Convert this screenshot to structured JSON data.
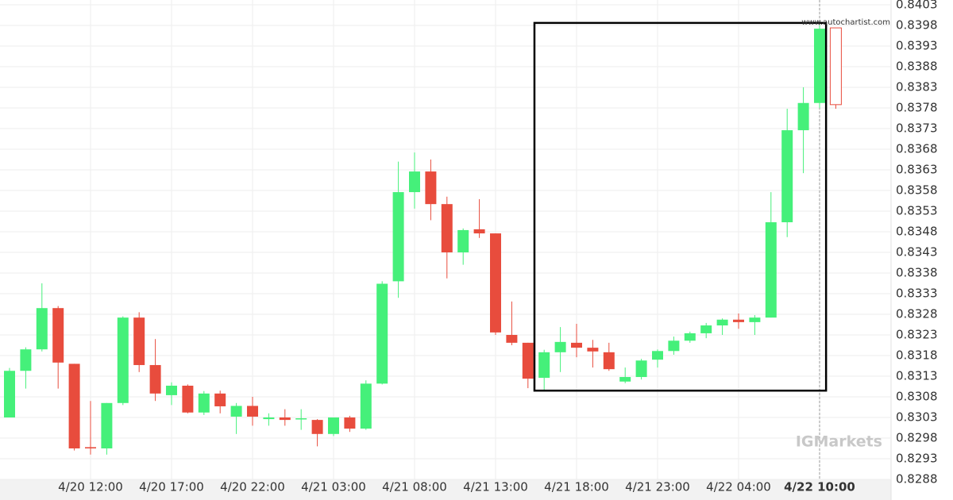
{
  "chart_data": {
    "type": "candlestick",
    "watermark": "www.autochartist.com",
    "logo": "IGMarkets",
    "categories": [
      null,
      null,
      null,
      null,
      null,
      "4/20 12:00",
      null,
      null,
      null,
      null,
      "4/20 17:00",
      null,
      null,
      null,
      null,
      "4/20 22:00",
      null,
      null,
      null,
      null,
      "4/21 03:00",
      null,
      null,
      null,
      null,
      "4/21 08:00",
      null,
      null,
      null,
      null,
      "4/21 13:00",
      null,
      null,
      null,
      null,
      "4/21 18:00",
      null,
      null,
      null,
      null,
      "4/21 23:00",
      null,
      null,
      null,
      null,
      "4/22 04:00",
      null,
      null,
      null,
      null,
      "4/22 10:00",
      null
    ],
    "open": [
      0.8303,
      0.83143,
      0.83195,
      0.83295,
      0.8316,
      0.82958,
      0.82955,
      0.83065,
      0.83272,
      0.83157,
      0.83084,
      0.83107,
      0.83042,
      0.83088,
      0.83032,
      0.83058,
      0.83026,
      0.8303,
      0.83026,
      0.83024,
      0.8299,
      0.8303,
      0.83003,
      0.83112,
      0.8336,
      0.83576,
      0.83626,
      0.83547,
      0.8343,
      0.83486,
      0.83476,
      0.8323,
      0.83211,
      0.83126,
      0.83188,
      0.83211,
      0.83199,
      0.83188,
      0.83117,
      0.83128,
      0.8317,
      0.83191,
      0.83216,
      0.83234,
      0.83253,
      0.83267,
      0.83261,
      0.83272,
      0.83503,
      0.83726,
      0.83792,
      0.83974
    ],
    "high": [
      0.8315,
      0.832,
      0.83355,
      0.833,
      0.8316,
      0.8307,
      0.83065,
      0.83275,
      0.83285,
      0.8322,
      0.83115,
      0.8311,
      0.83094,
      0.83095,
      0.83065,
      0.8308,
      0.8304,
      0.8305,
      0.8305,
      0.83026,
      0.8303,
      0.83034,
      0.8312,
      0.8336,
      0.8365,
      0.83672,
      0.83655,
      0.83565,
      0.83488,
      0.83559,
      0.83476,
      0.83311,
      0.83211,
      0.83194,
      0.83249,
      0.83257,
      0.83218,
      0.83211,
      0.83151,
      0.83172,
      0.83195,
      0.83226,
      0.83238,
      0.83259,
      0.8327,
      0.83282,
      0.83278,
      0.83576,
      0.83778,
      0.8383,
      0.8398,
      0.83974
    ],
    "low": [
      0.8303,
      0.831,
      0.8319,
      0.831,
      0.8295,
      0.8294,
      0.8294,
      0.8306,
      0.8314,
      0.8307,
      0.8306,
      0.8304,
      0.83036,
      0.8304,
      0.8299,
      0.8301,
      0.8301,
      0.8301,
      0.83,
      0.8296,
      0.82985,
      0.82995,
      0.83,
      0.8311,
      0.8332,
      0.83536,
      0.83508,
      0.83367,
      0.834,
      0.83465,
      0.8323,
      0.83205,
      0.83101,
      0.83095,
      0.8314,
      0.83176,
      0.83151,
      0.83143,
      0.83113,
      0.83122,
      0.83151,
      0.83182,
      0.83211,
      0.83222,
      0.8323,
      0.83245,
      0.8323,
      0.83272,
      0.83467,
      0.83622,
      0.8378,
      0.83778
    ],
    "close": [
      0.83143,
      0.83195,
      0.83295,
      0.83163,
      0.82955,
      0.82955,
      0.83065,
      0.83272,
      0.83157,
      0.83088,
      0.83107,
      0.83042,
      0.83088,
      0.83057,
      0.83058,
      0.83032,
      0.8303,
      0.83024,
      0.83028,
      0.8299,
      0.8303,
      0.83003,
      0.83112,
      0.83354,
      0.83576,
      0.83626,
      0.83547,
      0.8343,
      0.83484,
      0.83476,
      0.83236,
      0.83211,
      0.83124,
      0.83188,
      0.83213,
      0.83199,
      0.8319,
      0.83147,
      0.83128,
      0.83168,
      0.83191,
      0.83216,
      0.83234,
      0.83253,
      0.83267,
      0.83261,
      0.83272,
      0.83503,
      0.83726,
      0.83792,
      0.83972,
      0.83788
    ],
    "up_color": "#45f07a",
    "down_color": "#e84c3d",
    "last_candle_hollow": true,
    "pattern_box": {
      "x": [
        32.4,
        50.4
      ],
      "y": [
        0.83095,
        0.83986
      ],
      "color": "#000000"
    },
    "ylim": [
      0.8288,
      0.8403
    ],
    "yticks": [
      0.8288,
      0.8293,
      0.8298,
      0.8303,
      0.8308,
      0.8313,
      0.8318,
      0.8323,
      0.8328,
      0.8333,
      0.8338,
      0.8343,
      0.8348,
      0.8353,
      0.8358,
      0.8363,
      0.8368,
      0.8373,
      0.8378,
      0.8383,
      0.8388,
      0.8393,
      0.8398,
      0.8403
    ],
    "grid": true
  }
}
